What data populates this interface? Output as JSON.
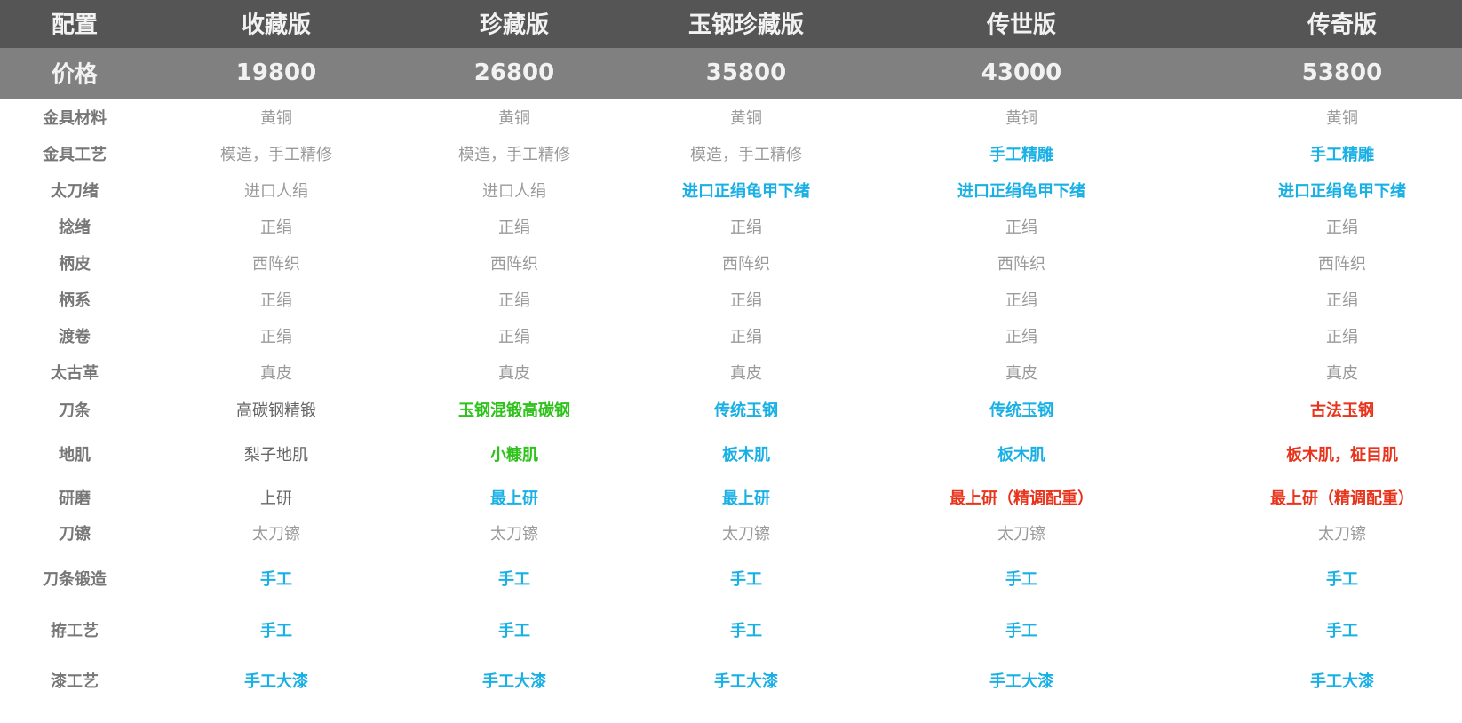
{
  "table": {
    "header": [
      "配置",
      "收藏版",
      "珍藏版",
      "玉钢珍藏版",
      "传世版",
      "传奇版"
    ],
    "price": [
      "价格",
      19800,
      26800,
      35800,
      43000,
      53800
    ],
    "rows": [
      {
        "label": "金具材料",
        "cells": [
          "黄铜",
          "黄铜",
          "黄铜",
          "黄铜",
          "黄铜"
        ]
      },
      {
        "label": "金具工艺",
        "cells": [
          "模造，手工精修",
          "模造，手工精修",
          "模造，手工精修",
          {
            "text": "手工精雕",
            "color": "#19b0e6",
            "bold": true
          },
          {
            "text": "手工精雕",
            "color": "#19b0e6",
            "bold": true
          }
        ]
      },
      {
        "label": "太刀绪",
        "cells": [
          "进口人绢",
          "进口人绢",
          {
            "text": "进口正绢龟甲下绪",
            "color": "#19b0e6",
            "bold": true
          },
          {
            "text": "进口正绢龟甲下绪",
            "color": "#19b0e6",
            "bold": true
          },
          {
            "text": "进口正绢龟甲下绪",
            "color": "#19b0e6",
            "bold": true
          }
        ]
      },
      {
        "label": "捻绪",
        "cells": [
          "正绢",
          "正绢",
          "正绢",
          "正绢",
          "正绢"
        ]
      },
      {
        "label": "柄皮",
        "cells": [
          "西阵织",
          "西阵织",
          "西阵织",
          "西阵织",
          "西阵织"
        ]
      },
      {
        "label": "柄系",
        "cells": [
          "正绢",
          "正绢",
          "正绢",
          "正绢",
          "正绢"
        ]
      },
      {
        "label": "渡卷",
        "cells": [
          "正绢",
          "正绢",
          "正绢",
          "正绢",
          "正绢"
        ]
      },
      {
        "label": "太古革",
        "cells": [
          "真皮",
          "真皮",
          "真皮",
          "真皮",
          "真皮"
        ]
      },
      {
        "label": "刀条",
        "cells": [
          {
            "text": "高碳钢精锻",
            "color": "#666666",
            "bold": false
          },
          {
            "text": "玉钢混锻高碳钢",
            "color": "#2ec21a",
            "bold": true
          },
          {
            "text": "传统玉钢",
            "color": "#19b0e6",
            "bold": true
          },
          {
            "text": "传统玉钢",
            "color": "#19b0e6",
            "bold": true
          },
          {
            "text": "古法玉钢",
            "color": "#e8341c",
            "bold": true
          }
        ]
      },
      {
        "label": "地肌",
        "cells": [
          {
            "text": "梨子地肌",
            "color": "#666666",
            "bold": false
          },
          {
            "text": "小糠肌",
            "color": "#2ec21a",
            "bold": true
          },
          {
            "text": "板木肌",
            "color": "#19b0e6",
            "bold": true
          },
          {
            "text": "板木肌",
            "color": "#19b0e6",
            "bold": true
          },
          {
            "text": "板木肌，柾目肌",
            "color": "#e8341c",
            "bold": true
          }
        ]
      },
      {
        "label": "研磨",
        "cells": [
          {
            "text": "上研",
            "color": "#666666",
            "bold": false
          },
          {
            "text": "最上研",
            "color": "#19b0e6",
            "bold": true
          },
          {
            "text": "最上研",
            "color": "#19b0e6",
            "bold": true
          },
          {
            "text": "最上研（精调配重）",
            "color": "#e8341c",
            "bold": true
          },
          {
            "text": "最上研（精调配重）",
            "color": "#e8341c",
            "bold": true
          }
        ]
      },
      {
        "label": "刀镲",
        "cells": [
          "太刀镲",
          "太刀镲",
          "太刀镲",
          "太刀镲",
          "太刀镲"
        ]
      },
      {
        "label": "刀条锻造",
        "cells": [
          {
            "text": "手工",
            "color": "#19b0e6",
            "bold": true
          },
          {
            "text": "手工",
            "color": "#19b0e6",
            "bold": true
          },
          {
            "text": "手工",
            "color": "#19b0e6",
            "bold": true
          },
          {
            "text": "手工",
            "color": "#19b0e6",
            "bold": true
          },
          {
            "text": "手工",
            "color": "#19b0e6",
            "bold": true
          }
        ]
      },
      {
        "label": "拵工艺",
        "cells": [
          {
            "text": "手工",
            "color": "#19b0e6",
            "bold": true
          },
          {
            "text": "手工",
            "color": "#19b0e6",
            "bold": true
          },
          {
            "text": "手工",
            "color": "#19b0e6",
            "bold": true
          },
          {
            "text": "手工",
            "color": "#19b0e6",
            "bold": true
          },
          {
            "text": "手工",
            "color": "#19b0e6",
            "bold": true
          }
        ]
      },
      {
        "label": "漆工艺",
        "cells": [
          {
            "text": "手工大漆",
            "color": "#19b0e6",
            "bold": true
          },
          {
            "text": "手工大漆",
            "color": "#19b0e6",
            "bold": true
          },
          {
            "text": "手工大漆",
            "color": "#19b0e6",
            "bold": true
          },
          {
            "text": "手工大漆",
            "color": "#19b0e6",
            "bold": true
          },
          {
            "text": "手工大漆",
            "color": "#19b0e6",
            "bold": true
          }
        ]
      }
    ]
  }
}
